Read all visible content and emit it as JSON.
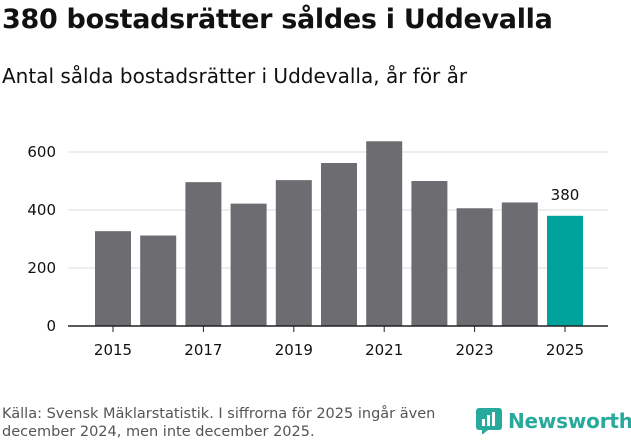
{
  "title": "380 bostadsrätter såldes i Uddevalla",
  "subtitle": "Antal sålda bostadsrätter i Uddevalla, år för år",
  "source": "Källa: Svensk Mäklarstatistik. I siffrorna för 2025 ingår även december 2024, men inte december 2025.",
  "brand": "Newsworthy",
  "colors": {
    "bar": "#6d6c71",
    "highlight": "#00a39b",
    "grid": "#dddddd",
    "brand": "#27a99b"
  },
  "chart_data": {
    "type": "bar",
    "title": "Antal sålda bostadsrätter i Uddevalla, år för år",
    "categories": [
      "2015",
      "2016",
      "2017",
      "2018",
      "2019",
      "2020",
      "2021",
      "2022",
      "2023",
      "2024",
      "2025"
    ],
    "values": [
      327,
      312,
      496,
      422,
      503,
      562,
      637,
      500,
      406,
      426,
      380
    ],
    "highlight_index": 10,
    "highlight_label": "380",
    "x_tick_labels": [
      "2015",
      "2017",
      "2019",
      "2021",
      "2023",
      "2025"
    ],
    "y_ticks": [
      0,
      200,
      400,
      600
    ],
    "ylim": [
      0,
      640
    ],
    "xlabel": "",
    "ylabel": "",
    "grid": true
  }
}
